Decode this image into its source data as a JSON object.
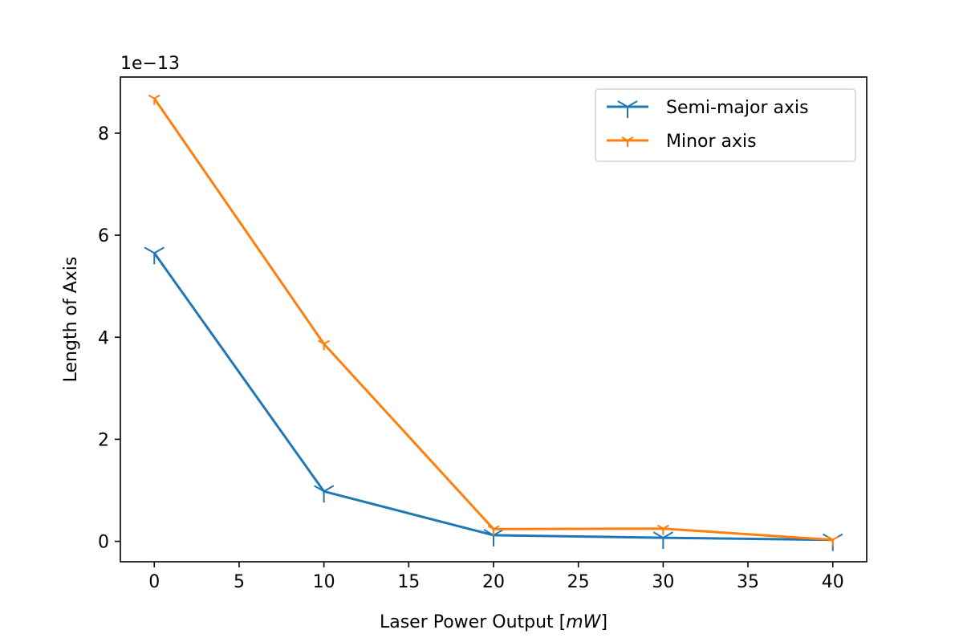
{
  "chart_data": {
    "type": "line",
    "title": "",
    "xlabel_text": "Laser Power Output [",
    "xlabel_unit": "mW",
    "xlabel_close": "]",
    "ylabel": "Length of Axis",
    "y_offset_label": "1e−13",
    "y_scale": 1e-13,
    "xlim": [
      -2,
      42
    ],
    "ylim": [
      -0.4,
      9.1
    ],
    "x_ticks": [
      0,
      5,
      10,
      15,
      20,
      25,
      30,
      35,
      40
    ],
    "y_ticks": [
      0,
      2,
      4,
      6,
      8
    ],
    "grid": false,
    "legend_position": "top-right",
    "series": [
      {
        "name": "Semi-major axis",
        "color": "#1f77b4",
        "marker": "tri-down",
        "x": [
          0,
          10,
          20,
          30,
          40
        ],
        "y": [
          5.65,
          0.98,
          0.12,
          0.07,
          0.03
        ]
      },
      {
        "name": "Minor axis",
        "color": "#ff7f0e",
        "marker": "tri-down-small",
        "x": [
          0,
          10,
          20,
          30,
          40
        ],
        "y": [
          8.68,
          3.87,
          0.24,
          0.25,
          0.03
        ]
      }
    ]
  }
}
